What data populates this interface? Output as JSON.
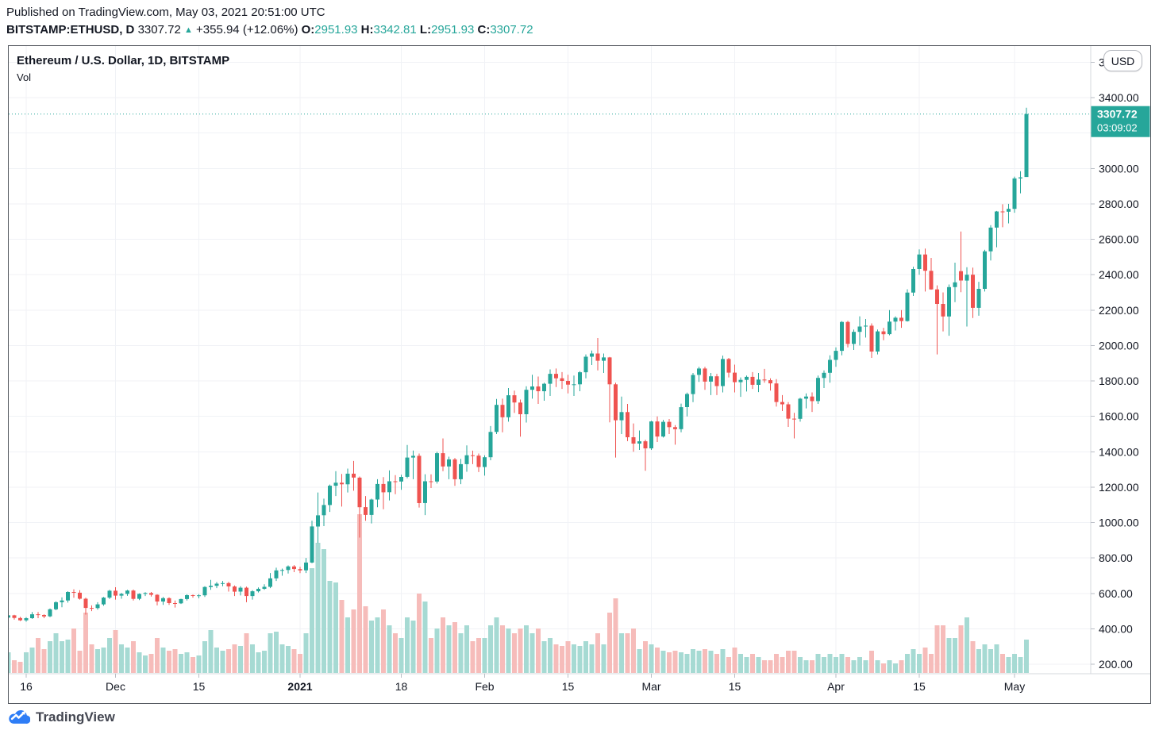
{
  "published_line": "Published on TradingView.com, May 03, 2021 20:51:00 UTC",
  "symbol_line": {
    "segments": [
      {
        "name": "symbol-name",
        "text": "BITSTAMP:ETHUSD, D ",
        "bold": true,
        "color": "dark"
      },
      {
        "name": "last-price",
        "text": "3307.72 ",
        "color": "dark"
      },
      {
        "name": "change-arrow-icon",
        "text": "▲",
        "color": "teal",
        "arrow": true
      },
      {
        "name": "change-value",
        "text": " +355.94 (+12.06%) ",
        "color": "dark"
      },
      {
        "name": "open-label",
        "text": "O:",
        "bold": true,
        "color": "dark"
      },
      {
        "name": "open-value",
        "text": "2951.93",
        "color": "teal"
      },
      {
        "name": "high-label",
        "text": " H:",
        "bold": true,
        "color": "dark"
      },
      {
        "name": "high-value",
        "text": "3342.81",
        "color": "teal"
      },
      {
        "name": "low-label",
        "text": " L:",
        "bold": true,
        "color": "dark"
      },
      {
        "name": "low-value",
        "text": "2951.93",
        "color": "teal"
      },
      {
        "name": "close-label",
        "text": " C:",
        "bold": true,
        "color": "dark"
      },
      {
        "name": "close-value",
        "text": "3307.72",
        "color": "teal"
      }
    ]
  },
  "chart_header": {
    "title": "Ethereum / U.S. Dollar, 1D, BITSTAMP",
    "indicator_label": "Vol",
    "currency_button": "USD"
  },
  "price_badge": {
    "price": "3307.72",
    "countdown": "03:09:02"
  },
  "footer": {
    "brand": "TradingView"
  },
  "colors": {
    "up": "#26a69a",
    "down": "#ef5350",
    "vol_up": "#a6dad3",
    "vol_down": "#f6bcba",
    "grid": "#f0f2f6",
    "separator": "#d6d9de",
    "tick": "#b9bdc5",
    "axis_text": "#131722",
    "badge_bg": "#26a69a",
    "badge_text": "#ffffff",
    "dotted_line": "#26a69a",
    "logo_blue": "#2e7df6"
  },
  "chart_data": {
    "type": "candlestick",
    "symbol": "BITSTAMP:ETHUSD",
    "interval": "1D",
    "title": "Ethereum / U.S. Dollar, 1D, BITSTAMP",
    "current_price": 3307.72,
    "countdown": "03:09:02",
    "y_axis": {
      "min": 200,
      "max": 3600,
      "step": 200,
      "format": "2dp",
      "side": "right"
    },
    "x_ticks": [
      {
        "label": "16",
        "date": "2020-11-16"
      },
      {
        "label": "Dec",
        "date": "2020-12-01"
      },
      {
        "label": "15",
        "date": "2020-12-15"
      },
      {
        "label": "2021",
        "date": "2021-01-01",
        "bold": true
      },
      {
        "label": "18",
        "date": "2021-01-18"
      },
      {
        "label": "Feb",
        "date": "2021-02-01"
      },
      {
        "label": "15",
        "date": "2021-02-15"
      },
      {
        "label": "Mar",
        "date": "2021-03-01"
      },
      {
        "label": "15",
        "date": "2021-03-15"
      },
      {
        "label": "Apr",
        "date": "2021-04-01"
      },
      {
        "label": "15",
        "date": "2021-04-15"
      },
      {
        "label": "May",
        "date": "2021-05-01"
      }
    ],
    "candles_start_date": "2020-11-13",
    "candle_fields": [
      "open",
      "high",
      "low",
      "close",
      "volume_rel"
    ],
    "candles": [
      [
        463,
        478,
        453,
        476,
        0.13
      ],
      [
        476,
        479,
        452,
        461,
        0.08
      ],
      [
        461,
        467,
        444,
        448,
        0.07
      ],
      [
        448,
        466,
        440,
        460,
        0.13
      ],
      [
        460,
        495,
        456,
        482,
        0.16
      ],
      [
        482,
        495,
        460,
        478,
        0.22
      ],
      [
        478,
        482,
        460,
        470,
        0.15
      ],
      [
        470,
        515,
        466,
        510,
        0.2
      ],
      [
        510,
        555,
        505,
        550,
        0.25
      ],
      [
        550,
        578,
        522,
        560,
        0.2
      ],
      [
        560,
        612,
        548,
        608,
        0.21
      ],
      [
        608,
        623,
        575,
        604,
        0.28
      ],
      [
        604,
        618,
        565,
        570,
        0.14
      ],
      [
        570,
        576,
        480,
        518,
        0.38
      ],
      [
        518,
        532,
        500,
        517,
        0.18
      ],
      [
        517,
        550,
        508,
        538,
        0.15
      ],
      [
        538,
        580,
        530,
        576,
        0.16
      ],
      [
        576,
        620,
        568,
        615,
        0.22
      ],
      [
        615,
        635,
        565,
        587,
        0.27
      ],
      [
        587,
        603,
        570,
        597,
        0.18
      ],
      [
        597,
        620,
        586,
        616,
        0.16
      ],
      [
        616,
        622,
        560,
        569,
        0.2
      ],
      [
        569,
        600,
        562,
        597,
        0.13
      ],
      [
        597,
        607,
        585,
        602,
        0.11
      ],
      [
        602,
        608,
        582,
        592,
        0.12
      ],
      [
        592,
        595,
        532,
        554,
        0.22
      ],
      [
        554,
        580,
        535,
        573,
        0.16
      ],
      [
        573,
        578,
        535,
        545,
        0.14
      ],
      [
        545,
        560,
        520,
        544,
        0.15
      ],
      [
        544,
        570,
        540,
        568,
        0.12
      ],
      [
        568,
        595,
        560,
        590,
        0.13
      ],
      [
        590,
        593,
        576,
        586,
        0.1
      ],
      [
        586,
        596,
        572,
        589,
        0.11
      ],
      [
        589,
        640,
        580,
        636,
        0.2
      ],
      [
        636,
        676,
        620,
        643,
        0.27
      ],
      [
        643,
        664,
        630,
        655,
        0.16
      ],
      [
        655,
        670,
        640,
        658,
        0.14
      ],
      [
        658,
        665,
        610,
        639,
        0.15
      ],
      [
        639,
        645,
        585,
        610,
        0.18
      ],
      [
        610,
        640,
        588,
        632,
        0.17
      ],
      [
        632,
        638,
        550,
        585,
        0.25
      ],
      [
        585,
        618,
        565,
        612,
        0.18
      ],
      [
        612,
        634,
        605,
        626,
        0.13
      ],
      [
        626,
        652,
        620,
        637,
        0.14
      ],
      [
        637,
        715,
        630,
        685,
        0.25
      ],
      [
        685,
        745,
        670,
        730,
        0.26
      ],
      [
        730,
        740,
        700,
        732,
        0.18
      ],
      [
        732,
        758,
        712,
        752,
        0.17
      ],
      [
        752,
        760,
        720,
        737,
        0.15
      ],
      [
        737,
        750,
        714,
        730,
        0.12
      ],
      [
        730,
        800,
        715,
        774,
        0.25
      ],
      [
        774,
        1011,
        770,
        978,
        0.66
      ],
      [
        978,
        1170,
        885,
        1041,
        0.82
      ],
      [
        1041,
        1135,
        980,
        1099,
        0.78
      ],
      [
        1099,
        1215,
        1060,
        1208,
        0.58
      ],
      [
        1208,
        1290,
        1150,
        1225,
        0.57
      ],
      [
        1225,
        1275,
        1090,
        1216,
        0.46
      ],
      [
        1216,
        1305,
        1170,
        1276,
        0.35
      ],
      [
        1276,
        1348,
        1180,
        1254,
        0.4
      ],
      [
        1254,
        1260,
        915,
        1087,
        1.0
      ],
      [
        1087,
        1150,
        1010,
        1043,
        0.42
      ],
      [
        1043,
        1135,
        995,
        1130,
        0.33
      ],
      [
        1130,
        1245,
        1086,
        1218,
        0.35
      ],
      [
        1218,
        1257,
        1075,
        1171,
        0.4
      ],
      [
        1171,
        1295,
        1125,
        1233,
        0.3
      ],
      [
        1233,
        1268,
        1160,
        1232,
        0.25
      ],
      [
        1232,
        1270,
        1185,
        1258,
        0.22
      ],
      [
        1258,
        1438,
        1250,
        1367,
        0.35
      ],
      [
        1367,
        1407,
        1245,
        1377,
        0.33
      ],
      [
        1377,
        1390,
        1085,
        1110,
        0.5
      ],
      [
        1110,
        1273,
        1042,
        1233,
        0.45
      ],
      [
        1233,
        1272,
        1195,
        1232,
        0.22
      ],
      [
        1232,
        1400,
        1220,
        1392,
        0.28
      ],
      [
        1392,
        1475,
        1290,
        1317,
        0.35
      ],
      [
        1317,
        1372,
        1245,
        1357,
        0.3
      ],
      [
        1357,
        1365,
        1207,
        1245,
        0.32
      ],
      [
        1245,
        1360,
        1217,
        1330,
        0.25
      ],
      [
        1330,
        1436,
        1287,
        1380,
        0.3
      ],
      [
        1380,
        1406,
        1330,
        1378,
        0.2
      ],
      [
        1378,
        1390,
        1285,
        1314,
        0.22
      ],
      [
        1314,
        1380,
        1265,
        1369,
        0.22
      ],
      [
        1369,
        1545,
        1352,
        1512,
        0.3
      ],
      [
        1512,
        1698,
        1500,
        1665,
        0.35
      ],
      [
        1665,
        1700,
        1510,
        1595,
        0.3
      ],
      [
        1595,
        1760,
        1570,
        1719,
        0.28
      ],
      [
        1719,
        1745,
        1619,
        1678,
        0.25
      ],
      [
        1678,
        1695,
        1485,
        1612,
        0.28
      ],
      [
        1612,
        1770,
        1565,
        1750,
        0.3
      ],
      [
        1750,
        1835,
        1700,
        1769,
        0.25
      ],
      [
        1769,
        1825,
        1670,
        1742,
        0.28
      ],
      [
        1742,
        1790,
        1688,
        1784,
        0.2
      ],
      [
        1784,
        1865,
        1715,
        1840,
        0.22
      ],
      [
        1840,
        1870,
        1765,
        1815,
        0.18
      ],
      [
        1815,
        1850,
        1755,
        1800,
        0.17
      ],
      [
        1800,
        1835,
        1730,
        1779,
        0.2
      ],
      [
        1779,
        1830,
        1715,
        1781,
        0.18
      ],
      [
        1781,
        1855,
        1742,
        1849,
        0.17
      ],
      [
        1849,
        1950,
        1815,
        1937,
        0.2
      ],
      [
        1937,
        1972,
        1890,
        1955,
        0.18
      ],
      [
        1955,
        2042,
        1860,
        1914,
        0.25
      ],
      [
        1914,
        1955,
        1845,
        1933,
        0.18
      ],
      [
        1933,
        1936,
        1566,
        1781,
        0.38
      ],
      [
        1781,
        1790,
        1367,
        1578,
        0.47
      ],
      [
        1578,
        1712,
        1500,
        1624,
        0.25
      ],
      [
        1624,
        1670,
        1460,
        1482,
        0.25
      ],
      [
        1482,
        1560,
        1400,
        1446,
        0.28
      ],
      [
        1446,
        1520,
        1410,
        1459,
        0.15
      ],
      [
        1459,
        1468,
        1293,
        1419,
        0.2
      ],
      [
        1419,
        1575,
        1410,
        1571,
        0.18
      ],
      [
        1571,
        1600,
        1455,
        1486,
        0.16
      ],
      [
        1486,
        1580,
        1480,
        1569,
        0.14
      ],
      [
        1569,
        1585,
        1500,
        1539,
        0.13
      ],
      [
        1539,
        1550,
        1440,
        1528,
        0.14
      ],
      [
        1528,
        1672,
        1510,
        1652,
        0.13
      ],
      [
        1652,
        1734,
        1600,
        1726,
        0.12
      ],
      [
        1726,
        1845,
        1680,
        1834,
        0.15
      ],
      [
        1834,
        1880,
        1795,
        1870,
        0.14
      ],
      [
        1870,
        1880,
        1750,
        1796,
        0.15
      ],
      [
        1796,
        1845,
        1720,
        1826,
        0.14
      ],
      [
        1826,
        1840,
        1720,
        1771,
        0.12
      ],
      [
        1771,
        1943,
        1735,
        1924,
        0.15
      ],
      [
        1924,
        1930,
        1820,
        1847,
        0.1
      ],
      [
        1847,
        1892,
        1735,
        1793,
        0.16
      ],
      [
        1793,
        1820,
        1710,
        1806,
        0.12
      ],
      [
        1806,
        1830,
        1740,
        1823,
        0.1
      ],
      [
        1823,
        1850,
        1755,
        1778,
        0.12
      ],
      [
        1778,
        1845,
        1737,
        1808,
        0.1
      ],
      [
        1808,
        1868,
        1790,
        1804,
        0.08
      ],
      [
        1804,
        1815,
        1745,
        1786,
        0.08
      ],
      [
        1786,
        1810,
        1655,
        1681,
        0.12
      ],
      [
        1681,
        1720,
        1630,
        1668,
        0.1
      ],
      [
        1668,
        1680,
        1540,
        1587,
        0.14
      ],
      [
        1587,
        1620,
        1475,
        1586,
        0.14
      ],
      [
        1586,
        1705,
        1570,
        1700,
        0.1
      ],
      [
        1700,
        1730,
        1645,
        1712,
        0.08
      ],
      [
        1712,
        1735,
        1625,
        1686,
        0.08
      ],
      [
        1686,
        1830,
        1670,
        1817,
        0.12
      ],
      [
        1817,
        1860,
        1760,
        1846,
        0.1
      ],
      [
        1846,
        1945,
        1790,
        1919,
        0.12
      ],
      [
        1919,
        1990,
        1880,
        1970,
        0.1
      ],
      [
        1970,
        2138,
        1945,
        2133,
        0.12
      ],
      [
        2133,
        2140,
        1990,
        2009,
        0.1
      ],
      [
        2009,
        2090,
        1975,
        2077,
        0.08
      ],
      [
        2077,
        2165,
        2000,
        2107,
        0.1
      ],
      [
        2107,
        2150,
        2045,
        2112,
        0.08
      ],
      [
        2112,
        2125,
        1930,
        1966,
        0.14
      ],
      [
        1966,
        2090,
        1950,
        2080,
        0.08
      ],
      [
        2080,
        2100,
        2030,
        2064,
        0.06
      ],
      [
        2064,
        2200,
        2058,
        2135,
        0.08
      ],
      [
        2135,
        2165,
        2085,
        2157,
        0.06
      ],
      [
        2157,
        2200,
        2100,
        2138,
        0.08
      ],
      [
        2138,
        2318,
        2135,
        2299,
        0.12
      ],
      [
        2299,
        2445,
        2280,
        2432,
        0.15
      ],
      [
        2432,
        2543,
        2400,
        2514,
        0.12
      ],
      [
        2514,
        2548,
        2305,
        2422,
        0.16
      ],
      [
        2422,
        2495,
        2315,
        2317,
        0.12
      ],
      [
        2317,
        2340,
        1950,
        2235,
        0.3
      ],
      [
        2235,
        2300,
        2080,
        2164,
        0.3
      ],
      [
        2164,
        2345,
        2055,
        2330,
        0.22
      ],
      [
        2330,
        2468,
        2245,
        2357,
        0.22
      ],
      [
        2420,
        2644,
        2301,
        2367,
        0.3
      ],
      [
        2367,
        2442,
        2107,
        2400,
        0.35
      ],
      [
        2400,
        2440,
        2155,
        2213,
        0.2
      ],
      [
        2213,
        2360,
        2168,
        2320,
        0.15
      ],
      [
        2320,
        2541,
        2305,
        2532,
        0.18
      ],
      [
        2532,
        2680,
        2480,
        2666,
        0.15
      ],
      [
        2666,
        2760,
        2555,
        2757,
        0.18
      ],
      [
        2757,
        2798,
        2668,
        2756,
        0.12
      ],
      [
        2756,
        2800,
        2690,
        2772,
        0.1
      ],
      [
        2772,
        2954,
        2750,
        2944,
        0.12
      ],
      [
        2944,
        2985,
        2860,
        2950,
        0.1
      ],
      [
        2951.93,
        3342.81,
        2951.93,
        3307.72,
        0.21
      ]
    ]
  }
}
